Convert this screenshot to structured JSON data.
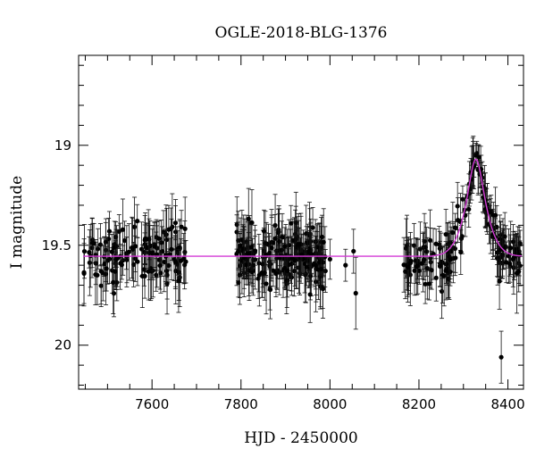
{
  "chart_data": {
    "type": "scatter",
    "title": "OGLE-2018-BLG-1376",
    "xlabel": "HJD - 2450000",
    "ylabel": "I magnitude",
    "xlim": [
      7435,
      8435
    ],
    "ylim": [
      20.22,
      18.55
    ],
    "y_inverted": true,
    "grid": false,
    "x_ticks": [
      7600,
      7800,
      8000,
      8200,
      8400
    ],
    "y_ticks": [
      19,
      19.5,
      20
    ],
    "x_tick_labels": [
      "7600",
      "7800",
      "8000",
      "8200",
      "8400"
    ],
    "y_tick_labels": [
      "19",
      "19.5",
      "20"
    ],
    "series": [
      {
        "kind": "points_with_errorbars",
        "color": "#000000",
        "segments": [
          {
            "x_range": [
              7445,
              7680
            ],
            "baseline": 19.55,
            "scatter": 0.11,
            "err": 0.12,
            "n": 130
          },
          {
            "x_range": [
              7790,
              7990
            ],
            "baseline": 19.56,
            "scatter": 0.11,
            "err": 0.12,
            "n": 200
          },
          {
            "x_range": [
              8165,
              8300
            ],
            "baseline": 19.58,
            "scatter": 0.09,
            "err": 0.11,
            "n": 80
          },
          {
            "x_range": [
              8300,
              8430
            ],
            "baseline": 19.55,
            "scatter": 0.08,
            "err": 0.1,
            "n": 90
          }
        ],
        "points": [
          {
            "x": 8035,
            "y": 19.6,
            "err": 0.08
          },
          {
            "x": 8053,
            "y": 19.53,
            "err": 0.11
          },
          {
            "x": 8058,
            "y": 19.74,
            "err": 0.18
          },
          {
            "x": 7980,
            "y": 19.62,
            "err": 0.1
          },
          {
            "x": 8000,
            "y": 19.57,
            "err": 0.1
          },
          {
            "x": 8330,
            "y": 19.04,
            "err": 0.06
          },
          {
            "x": 8328,
            "y": 19.05,
            "err": 0.06
          },
          {
            "x": 8335,
            "y": 19.06,
            "err": 0.06
          },
          {
            "x": 8324,
            "y": 19.1,
            "err": 0.06
          },
          {
            "x": 8318,
            "y": 19.17,
            "err": 0.07
          },
          {
            "x": 8340,
            "y": 19.12,
            "err": 0.07
          },
          {
            "x": 8345,
            "y": 19.26,
            "err": 0.08
          },
          {
            "x": 8350,
            "y": 19.32,
            "err": 0.09
          },
          {
            "x": 8312,
            "y": 19.32,
            "err": 0.09
          },
          {
            "x": 8372,
            "y": 19.35,
            "err": 0.14
          },
          {
            "x": 8381,
            "y": 19.68,
            "err": 0.14
          },
          {
            "x": 8385,
            "y": 20.06,
            "err": 0.13
          },
          {
            "x": 8420,
            "y": 19.64,
            "err": 0.2
          }
        ]
      },
      {
        "kind": "model_curve",
        "color": "#d33ad6",
        "baseline": 19.555,
        "peak_x": 8328,
        "peak_mag": 19.07,
        "width": 20
      }
    ]
  }
}
